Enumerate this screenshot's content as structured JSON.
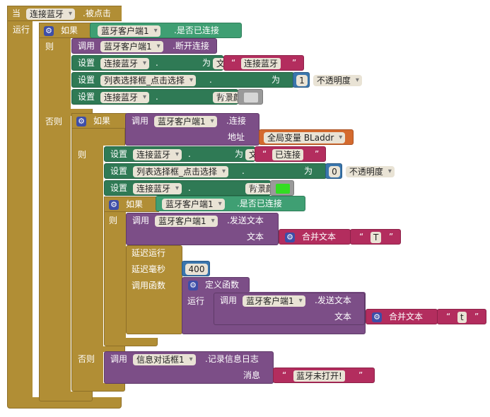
{
  "event": {
    "when": "当",
    "component": "连接蓝牙",
    "event_name": ".被点击",
    "run": "运行"
  },
  "if1": {
    "if": "如果",
    "then": "则",
    "else": "否则",
    "cond": {
      "component": "蓝牙客户端1",
      "prop": ".是否已连接"
    },
    "then_blocks": {
      "call": "调用",
      "disconnect_comp": "蓝牙客户端1",
      "disconnect": ".断开连接",
      "set": "设置",
      "set1_comp": "连接蓝牙",
      "set1_prop": "文本",
      "to": "为",
      "set1_value": "连接蓝牙",
      "set2_comp": "列表选择框_点击选择",
      "set2_prop": "不透明度",
      "set2_value": "1",
      "set3_comp": "连接蓝牙",
      "set3_prop": "背景颜色",
      "set3_color": "#d6d6d6"
    }
  },
  "if2": {
    "if": "如果",
    "then": "则",
    "else": "否则",
    "call": "调用",
    "connect_comp": "蓝牙客户端1",
    "connect": ".连接",
    "address": "地址",
    "global": "全局变量 BLaddr",
    "set": "设置",
    "to": "为",
    "s1_comp": "连接蓝牙",
    "s1_prop": "文本",
    "s1_value": "已连接",
    "s2_comp": "列表选择框_点击选择",
    "s2_prop": "不透明度",
    "s2_value": "0",
    "s3_comp": "连接蓝牙",
    "s3_prop": "背景颜色",
    "s3_color": "#33dd22",
    "if3": {
      "if": "如果",
      "then": "则",
      "cond_comp": "蓝牙客户端1",
      "cond_prop": ".是否已连接",
      "call": "调用",
      "send_comp": "蓝牙客户端1",
      "send": ".发送文本",
      "text": "文本",
      "join": "合并文本",
      "join_value": "T",
      "delay_run": "延迟运行",
      "delay_ms": "延迟毫秒",
      "delay_value": "400",
      "call_func": "调用函数",
      "define_func": "定义函数",
      "run": "运行",
      "inner_call": "调用",
      "inner_comp": "蓝牙客户端1",
      "inner_send": ".发送文本",
      "inner_text": "文本",
      "inner_join": "合并文本",
      "inner_value": "t"
    },
    "else_call": "调用",
    "else_comp": "信息对话框1",
    "else_method": ".记录信息日志",
    "message": "消息",
    "message_value": "蓝牙未打开!"
  },
  "quote_open": "“",
  "quote_close": "”"
}
